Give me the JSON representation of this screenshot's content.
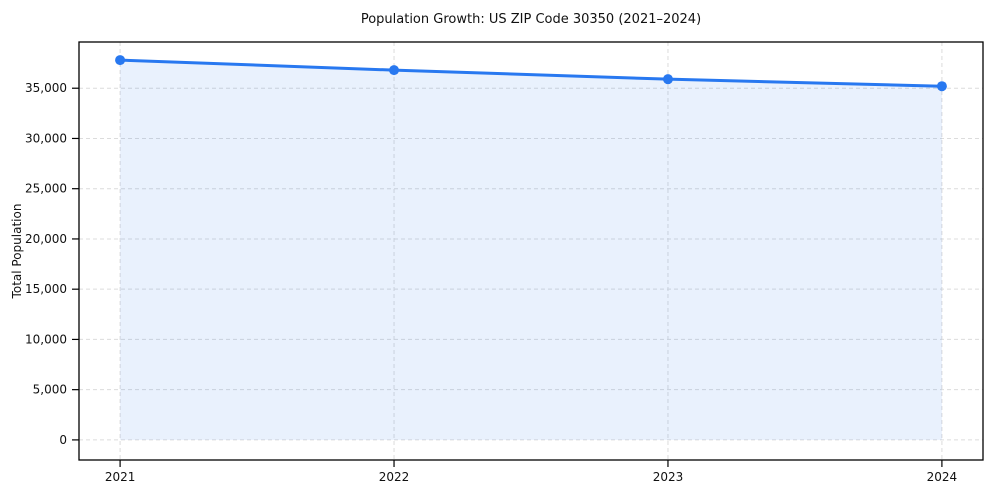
{
  "figure": {
    "background": "#ffffff"
  },
  "chart_data": {
    "type": "line",
    "title": "Population Growth: US ZIP Code 30350 (2021–2024)",
    "xlabel": "",
    "ylabel": "Total Population",
    "categories": [
      "2021",
      "2022",
      "2023",
      "2024"
    ],
    "series": [
      {
        "name": "Total Population",
        "values": [
          37800,
          36800,
          35900,
          35200
        ]
      }
    ],
    "yticks": [
      0,
      5000,
      10000,
      15000,
      20000,
      25000,
      30000,
      35000
    ],
    "ytick_labels": [
      "0",
      "5,000",
      "10,000",
      "15,000",
      "20,000",
      "25,000",
      "30,000",
      "35,000"
    ],
    "ylim": [
      -2000,
      39600
    ],
    "x_margin": 0.15,
    "grid": true,
    "grid_style": "dashed",
    "legend": "none",
    "fill_under": true,
    "fill_to_value": 0,
    "colors": {
      "line": "#2878f0",
      "marker": "#2878f0",
      "fill": "#2878f0",
      "fill_opacity": 0.1,
      "grid": "#dcdcdc",
      "spine": "#000000",
      "text": "#111111"
    }
  }
}
